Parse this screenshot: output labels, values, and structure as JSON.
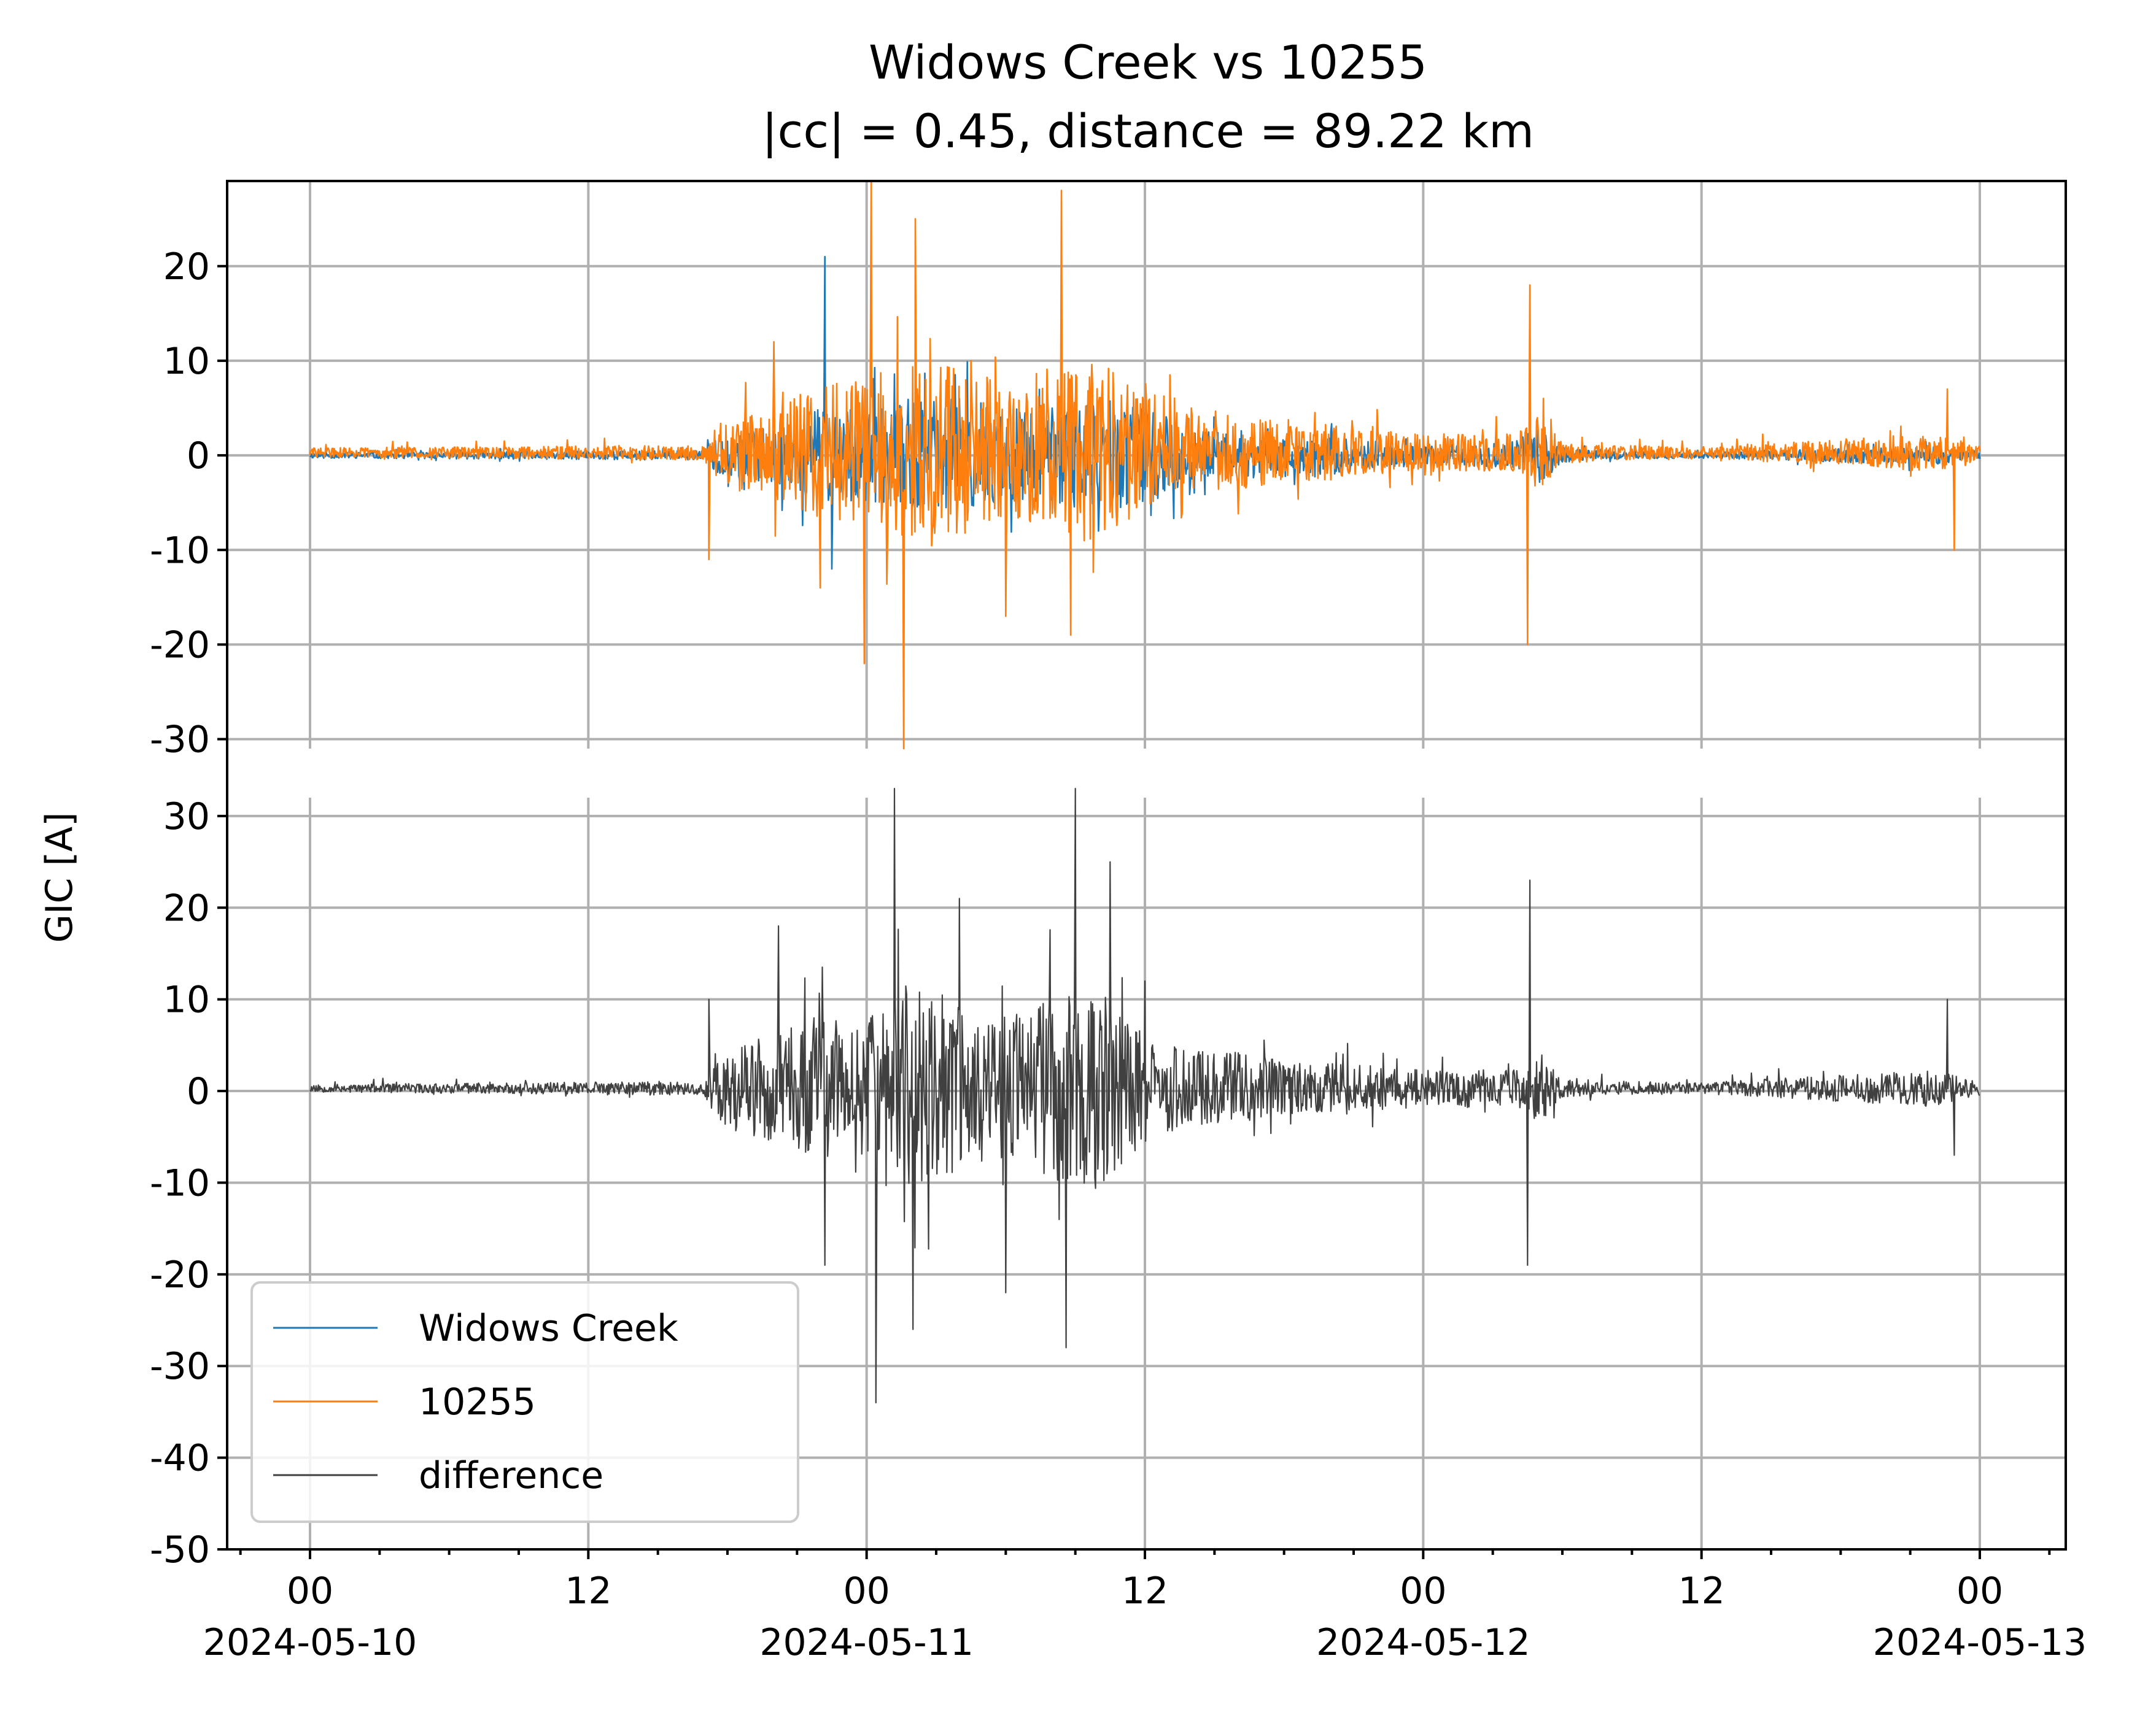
{
  "chart_data": {
    "type": "line",
    "title": "Widows Creek vs 10255",
    "subtitle": "|cc| = 0.45, distance = 89.22 km",
    "ylabel": "GIC [A]",
    "xlabel": "",
    "grid": true,
    "legend_placement": "lower-left",
    "x_range_hours": [
      0,
      72
    ],
    "x_tick_labels": [
      {
        "hour": 0,
        "time": "00",
        "date": "2024-05-10"
      },
      {
        "hour": 12,
        "time": "12",
        "date": ""
      },
      {
        "hour": 24,
        "time": "00",
        "date": "2024-05-11"
      },
      {
        "hour": 36,
        "time": "12",
        "date": ""
      },
      {
        "hour": 48,
        "time": "00",
        "date": "2024-05-12"
      },
      {
        "hour": 60,
        "time": "12",
        "date": ""
      },
      {
        "hour": 72,
        "time": "00",
        "date": "2024-05-13"
      }
    ],
    "panels": [
      {
        "name": "top",
        "ylim": [
          -31,
          29
        ],
        "yticks": [
          20,
          10,
          0,
          -10,
          -20,
          -30
        ],
        "ytick_labels": [
          "20",
          "10",
          "0",
          "-10",
          "-20",
          "-30"
        ],
        "series": [
          "Widows Creek",
          "10255"
        ]
      },
      {
        "name": "bottom",
        "ylim": [
          -50,
          32
        ],
        "yticks": [
          30,
          20,
          10,
          0,
          -10,
          -20,
          -30,
          -40,
          -50
        ],
        "ytick_labels": [
          "30",
          "20",
          "10",
          "0",
          "-10",
          "-20",
          "-30",
          "-40",
          "-50"
        ],
        "series": [
          "difference"
        ]
      }
    ],
    "series": [
      {
        "name": "Widows Creek",
        "color": "#1f77b4",
        "panel": "top",
        "keypoints_hours": [
          0,
          6,
          12,
          15,
          17,
          19,
          21,
          22.2,
          22.5,
          24,
          26,
          28,
          30,
          32,
          34,
          36,
          38,
          40,
          42,
          44,
          46,
          48,
          50,
          52,
          54,
          56,
          60,
          64,
          68,
          70,
          72
        ],
        "keypoints_values": [
          -0.5,
          0,
          0,
          -1,
          0,
          1,
          -2,
          21,
          -12,
          2,
          -5,
          6,
          -4,
          5,
          -8,
          3,
          2,
          2,
          1,
          1,
          1,
          0,
          1,
          0,
          0,
          0,
          0,
          0,
          0,
          -1,
          0
        ],
        "envelope_hours": [
          0,
          17,
          17.5,
          20,
          22,
          24,
          26,
          28,
          30,
          32,
          34,
          36,
          38,
          40,
          42,
          44,
          46,
          48,
          50,
          52,
          53,
          54,
          56,
          60,
          70,
          72
        ],
        "envelope_amplitude": [
          0.3,
          0.5,
          2,
          3,
          5,
          5,
          6,
          6,
          5,
          5,
          6,
          5,
          3,
          2,
          2,
          2,
          1.5,
          1,
          1,
          1.5,
          3,
          0.8,
          0.4,
          0.3,
          1,
          0.4
        ]
      },
      {
        "name": "10255",
        "color": "#ff7f0e",
        "panel": "top",
        "keypoints_hours": [
          0,
          3.5,
          6,
          12,
          15,
          17.2,
          20,
          22,
          23.9,
          24.2,
          25.6,
          26.1,
          28.5,
          30,
          32.4,
          32.8,
          35,
          38,
          42,
          46,
          48,
          50,
          52.5,
          52.6,
          54,
          60,
          70.6,
          70.9,
          72
        ],
        "keypoints_values": [
          0,
          1.5,
          0.5,
          0.5,
          0.5,
          -11,
          12,
          -14,
          -22,
          29,
          -31,
          25,
          10,
          -17,
          28,
          -19,
          3,
          5,
          3,
          1,
          0,
          2,
          -20,
          18,
          0,
          0.5,
          7,
          -10,
          0
        ],
        "envelope_hours": [
          0,
          17,
          17.5,
          20,
          22,
          24,
          26,
          28,
          30,
          32,
          34,
          36,
          38,
          40,
          42,
          44,
          46,
          48,
          50,
          52,
          53,
          54,
          56,
          60,
          70,
          72
        ],
        "envelope_amplitude": [
          0.5,
          0.8,
          3,
          5,
          7,
          8,
          10,
          9,
          8,
          9,
          10,
          6,
          4,
          4,
          3,
          3,
          2.5,
          2,
          2,
          2,
          4,
          1.2,
          0.8,
          0.6,
          2,
          0.8
        ]
      },
      {
        "name": "difference",
        "color": "#404040",
        "panel": "bottom",
        "keypoints_hours": [
          0,
          6,
          12,
          15,
          17.2,
          20.2,
          22.2,
          24.4,
          25.2,
          26,
          28,
          30,
          32.6,
          33,
          34.5,
          36,
          40,
          44,
          48,
          52.5,
          52.6,
          54,
          60,
          70.6,
          70.9,
          72
        ],
        "keypoints_values": [
          -1,
          -0.5,
          -0.5,
          -1,
          10,
          18,
          -19,
          -34,
          35,
          -26,
          21,
          -22,
          -28,
          48,
          25,
          12,
          2,
          1,
          0,
          -19,
          23,
          0,
          -0.5,
          10,
          -7,
          0
        ],
        "envelope_hours": [
          0,
          17,
          17.5,
          20,
          22,
          24,
          26,
          28,
          30,
          32,
          34,
          36,
          38,
          40,
          42,
          44,
          46,
          48,
          50,
          52,
          53,
          54,
          56,
          60,
          70,
          72
        ],
        "envelope_amplitude": [
          0.4,
          0.8,
          4,
          6,
          8,
          8,
          11,
          9,
          8,
          10,
          11,
          6,
          4,
          4,
          3,
          3,
          2.5,
          2,
          2,
          2,
          4,
          1.2,
          0.8,
          0.6,
          2,
          0.8
        ]
      }
    ]
  }
}
